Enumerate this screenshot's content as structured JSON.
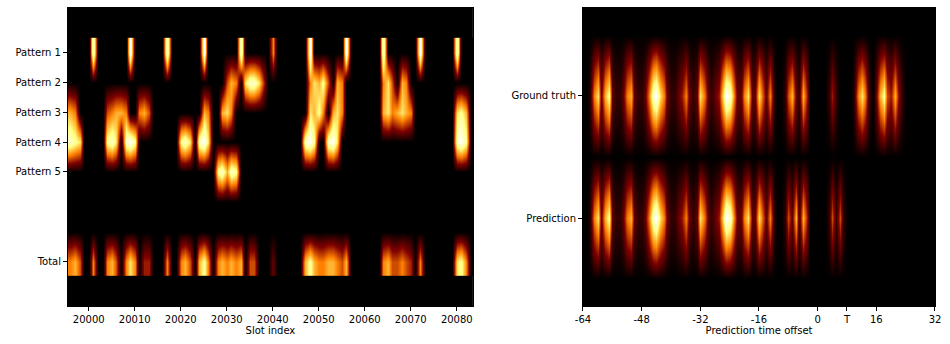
{
  "chart_data": [
    {
      "type": "heatmap",
      "xlabel": "Slot index",
      "x": [
        19996,
        19997,
        19998,
        19999,
        20000,
        20001,
        20002,
        20003,
        20004,
        20005,
        20006,
        20007,
        20008,
        20009,
        20010,
        20011,
        20012,
        20013,
        20014,
        20015,
        20016,
        20017,
        20018,
        20019,
        20020,
        20021,
        20022,
        20023,
        20024,
        20025,
        20026,
        20027,
        20028,
        20029,
        20030,
        20031,
        20032,
        20033,
        20034,
        20035,
        20036,
        20037,
        20038,
        20039,
        20040,
        20041,
        20042,
        20043,
        20044,
        20045,
        20046,
        20047,
        20048,
        20049,
        20050,
        20051,
        20052,
        20053,
        20054,
        20055,
        20056,
        20057,
        20058,
        20059,
        20060,
        20061,
        20062,
        20063,
        20064,
        20065,
        20066,
        20067,
        20068,
        20069,
        20070,
        20071,
        20072,
        20073,
        20074,
        20075,
        20076,
        20077,
        20078,
        20079,
        20080,
        20081,
        20082,
        20083
      ],
      "y": [
        "Pattern 1",
        "Pattern 2",
        "Pattern 3",
        "Pattern 4",
        "Pattern 5",
        null,
        null,
        "Total"
      ],
      "z": [
        [
          0,
          0,
          0,
          0,
          0,
          10,
          0,
          0,
          0,
          0,
          0,
          0,
          0,
          10,
          0,
          0,
          0,
          0,
          0,
          0,
          0,
          10,
          0,
          0,
          0,
          0,
          0,
          0,
          0,
          10,
          0,
          0,
          0,
          0,
          0,
          0,
          0,
          10,
          0,
          0,
          0,
          0,
          0,
          0,
          5,
          0,
          0,
          0,
          0,
          0,
          0,
          0,
          10,
          0,
          0,
          0,
          0,
          0,
          0,
          0,
          10,
          0,
          0,
          0,
          0,
          0,
          0,
          0,
          10,
          0,
          0,
          0,
          0,
          0,
          0,
          0,
          10,
          0,
          0,
          0,
          0,
          0,
          0,
          0,
          10,
          0,
          0,
          0
        ],
        [
          0,
          0,
          0,
          0,
          0,
          0,
          0,
          0,
          0,
          0,
          0,
          0,
          0,
          0,
          0,
          0,
          0,
          0,
          0,
          0,
          0,
          0,
          0,
          0,
          0,
          0,
          0,
          0,
          0,
          0,
          0,
          0,
          0,
          0,
          4,
          6,
          5,
          0,
          7,
          9,
          9,
          7,
          3,
          0,
          0,
          0,
          0,
          0,
          0,
          0,
          0,
          0,
          5,
          7,
          6,
          8,
          4,
          0,
          6,
          5,
          0,
          0,
          0,
          0,
          0,
          0,
          0,
          0,
          5,
          7,
          4,
          0,
          6,
          5,
          0,
          0,
          0,
          0,
          0,
          0,
          0,
          0,
          0,
          0,
          0,
          0,
          0,
          0
        ],
        [
          6,
          5,
          0,
          0,
          0,
          0,
          0,
          0,
          4,
          5,
          6,
          6,
          5,
          0,
          0,
          5,
          6,
          4,
          0,
          0,
          0,
          0,
          0,
          0,
          0,
          0,
          0,
          0,
          0,
          6,
          5,
          0,
          0,
          6,
          7,
          5,
          0,
          0,
          0,
          0,
          0,
          0,
          0,
          0,
          0,
          0,
          0,
          0,
          0,
          0,
          0,
          0,
          7,
          6,
          8,
          5,
          0,
          6,
          7,
          5,
          0,
          0,
          0,
          0,
          0,
          0,
          0,
          0,
          6,
          7,
          5,
          6,
          7,
          6,
          5,
          0,
          0,
          0,
          0,
          0,
          0,
          0,
          0,
          0,
          7,
          8,
          6,
          0
        ],
        [
          9,
          8,
          7,
          0,
          0,
          0,
          0,
          0,
          8,
          9,
          7,
          0,
          9,
          10,
          8,
          0,
          0,
          0,
          0,
          0,
          0,
          0,
          0,
          0,
          8,
          9,
          7,
          0,
          9,
          10,
          7,
          0,
          0,
          0,
          0,
          0,
          0,
          0,
          0,
          0,
          0,
          0,
          0,
          0,
          0,
          0,
          0,
          0,
          0,
          0,
          0,
          9,
          10,
          8,
          0,
          0,
          9,
          10,
          7,
          0,
          0,
          0,
          0,
          0,
          0,
          0,
          0,
          0,
          0,
          0,
          0,
          0,
          0,
          0,
          0,
          0,
          0,
          0,
          0,
          0,
          0,
          0,
          0,
          0,
          9,
          10,
          8,
          0
        ],
        [
          0,
          0,
          0,
          0,
          0,
          0,
          0,
          0,
          0,
          0,
          0,
          0,
          0,
          0,
          0,
          0,
          0,
          0,
          0,
          0,
          0,
          0,
          0,
          0,
          0,
          0,
          0,
          0,
          0,
          0,
          0,
          0,
          8,
          9,
          6,
          9,
          8,
          0,
          0,
          0,
          0,
          0,
          0,
          0,
          0,
          0,
          0,
          0,
          0,
          0,
          0,
          0,
          0,
          0,
          0,
          0,
          0,
          0,
          0,
          0,
          0,
          0,
          0,
          0,
          0,
          0,
          0,
          0,
          0,
          0,
          0,
          0,
          0,
          0,
          0,
          0,
          0,
          0,
          0,
          0,
          0,
          0,
          0,
          0,
          0,
          0,
          0,
          0
        ],
        [
          0,
          0,
          0,
          0,
          0,
          0,
          0,
          0,
          0,
          0,
          0,
          0,
          0,
          0,
          0,
          0,
          0,
          0,
          0,
          0,
          0,
          0,
          0,
          0,
          0,
          0,
          0,
          0,
          0,
          0,
          0,
          0,
          0,
          0,
          0,
          0,
          0,
          0,
          0,
          0,
          0,
          0,
          0,
          0,
          0,
          0,
          0,
          0,
          0,
          0,
          0,
          0,
          0,
          0,
          0,
          0,
          0,
          0,
          0,
          0,
          0,
          0,
          0,
          0,
          0,
          0,
          0,
          0,
          0,
          0,
          0,
          0,
          0,
          0,
          0,
          0,
          0,
          0,
          0,
          0,
          0,
          0,
          0,
          0,
          0,
          0,
          0,
          0
        ],
        [
          0,
          0,
          0,
          0,
          0,
          0,
          0,
          0,
          0,
          0,
          0,
          0,
          0,
          0,
          0,
          0,
          0,
          0,
          0,
          0,
          0,
          0,
          0,
          0,
          0,
          0,
          0,
          0,
          0,
          0,
          0,
          0,
          0,
          0,
          0,
          0,
          0,
          0,
          0,
          0,
          0,
          0,
          0,
          0,
          0,
          0,
          0,
          0,
          0,
          0,
          0,
          0,
          0,
          0,
          0,
          0,
          0,
          0,
          0,
          0,
          0,
          0,
          0,
          0,
          0,
          0,
          0,
          0,
          0,
          0,
          0,
          0,
          0,
          0,
          0,
          0,
          0,
          0,
          0,
          0,
          0,
          0,
          0,
          0,
          0,
          0,
          0,
          0
        ],
        [
          5,
          6,
          4,
          0,
          0,
          5,
          0,
          0,
          5,
          6,
          4,
          0,
          5,
          7,
          5,
          0,
          3,
          3,
          0,
          0,
          0,
          5,
          0,
          0,
          5,
          6,
          4,
          0,
          6,
          8,
          5,
          0,
          5,
          6,
          5,
          6,
          5,
          6,
          0,
          4,
          4,
          0,
          0,
          0,
          2,
          0,
          0,
          0,
          0,
          0,
          0,
          6,
          8,
          6,
          5,
          5,
          6,
          6,
          5,
          4,
          6,
          0,
          0,
          0,
          0,
          0,
          0,
          0,
          5,
          6,
          4,
          4,
          5,
          4,
          3,
          0,
          5,
          0,
          0,
          0,
          0,
          0,
          0,
          0,
          7,
          8,
          5,
          0
        ]
      ],
      "zlim": [
        0,
        10
      ],
      "xlim": [
        19995.5,
        20083.5
      ],
      "xticks": [
        20000,
        20010,
        20020,
        20030,
        20040,
        20050,
        20060,
        20070,
        20080
      ],
      "ylim": [
        8.5,
        -1.5
      ]
    },
    {
      "type": "heatmap",
      "xlabel": "Prediction time offset",
      "x": [
        -64,
        -63,
        -62,
        -61,
        -60,
        -59,
        -58,
        -57,
        -56,
        -55,
        -54,
        -53,
        -52,
        -51,
        -50,
        -49,
        -48,
        -47,
        -46,
        -45,
        -44,
        -43,
        -42,
        -41,
        -40,
        -39,
        -38,
        -37,
        -36,
        -35,
        -34,
        -33,
        -32,
        -31,
        -30,
        -29,
        -28,
        -27,
        -26,
        -25,
        -24,
        -23,
        -22,
        -21,
        -20,
        -19,
        -18,
        -17,
        -16,
        -15,
        -14,
        -13,
        -12,
        -11,
        -10,
        -9,
        -8,
        -7,
        -6,
        -5,
        -4,
        -3,
        -2,
        -1,
        0,
        1,
        2,
        3,
        4,
        5,
        6,
        7,
        8,
        9,
        10,
        11,
        12,
        13,
        14,
        15,
        16,
        17,
        18,
        19,
        20,
        21,
        22,
        23,
        24,
        25,
        26,
        27,
        28,
        29,
        30,
        31
      ],
      "y": [
        "Ground truth",
        "Prediction"
      ],
      "z": [
        [
          0,
          0,
          1,
          5,
          7,
          2,
          6,
          8,
          2,
          1,
          1,
          2,
          5,
          6,
          2,
          1,
          1,
          2,
          5,
          9,
          10,
          7,
          5,
          2,
          1,
          1,
          2,
          3,
          5,
          2,
          1,
          2,
          7,
          5,
          2,
          1,
          2,
          3,
          6,
          10,
          9,
          6,
          2,
          2,
          5,
          7,
          2,
          2,
          7,
          4,
          2,
          5,
          1,
          0,
          0,
          1,
          4,
          6,
          2,
          1,
          6,
          3,
          0,
          0,
          0,
          0,
          0,
          1,
          3,
          1,
          0,
          0,
          0,
          0,
          1,
          5,
          7,
          5,
          1,
          0,
          2,
          6,
          8,
          4,
          3,
          6,
          3,
          1,
          0,
          0,
          0,
          0,
          0,
          0,
          0,
          0
        ],
        [
          0,
          0,
          1,
          5,
          7,
          2,
          6,
          8,
          2,
          1,
          1,
          2,
          5,
          6,
          2,
          1,
          1,
          2,
          5,
          9,
          10,
          7,
          5,
          2,
          1,
          1,
          2,
          3,
          5,
          2,
          1,
          2,
          7,
          5,
          2,
          1,
          2,
          3,
          6,
          10,
          9,
          6,
          2,
          2,
          5,
          7,
          2,
          2,
          7,
          4,
          2,
          5,
          1,
          0,
          0,
          1,
          4,
          2,
          6,
          1,
          6,
          3,
          0,
          0,
          0,
          0,
          0,
          1,
          4,
          1,
          4,
          1,
          0,
          0,
          0,
          0,
          0,
          0,
          0,
          0,
          0,
          0,
          0,
          0,
          0,
          0,
          0,
          0,
          0,
          0,
          0,
          0,
          0,
          0,
          0,
          0
        ]
      ],
      "zlim": [
        0,
        10
      ],
      "xlim": [
        -64,
        32
      ],
      "xticks": [
        -64,
        -48,
        -32,
        -16,
        0,
        {
          "value": 8,
          "label": "T"
        },
        16,
        32
      ],
      "ylim": [
        1.72,
        -0.72
      ]
    }
  ]
}
